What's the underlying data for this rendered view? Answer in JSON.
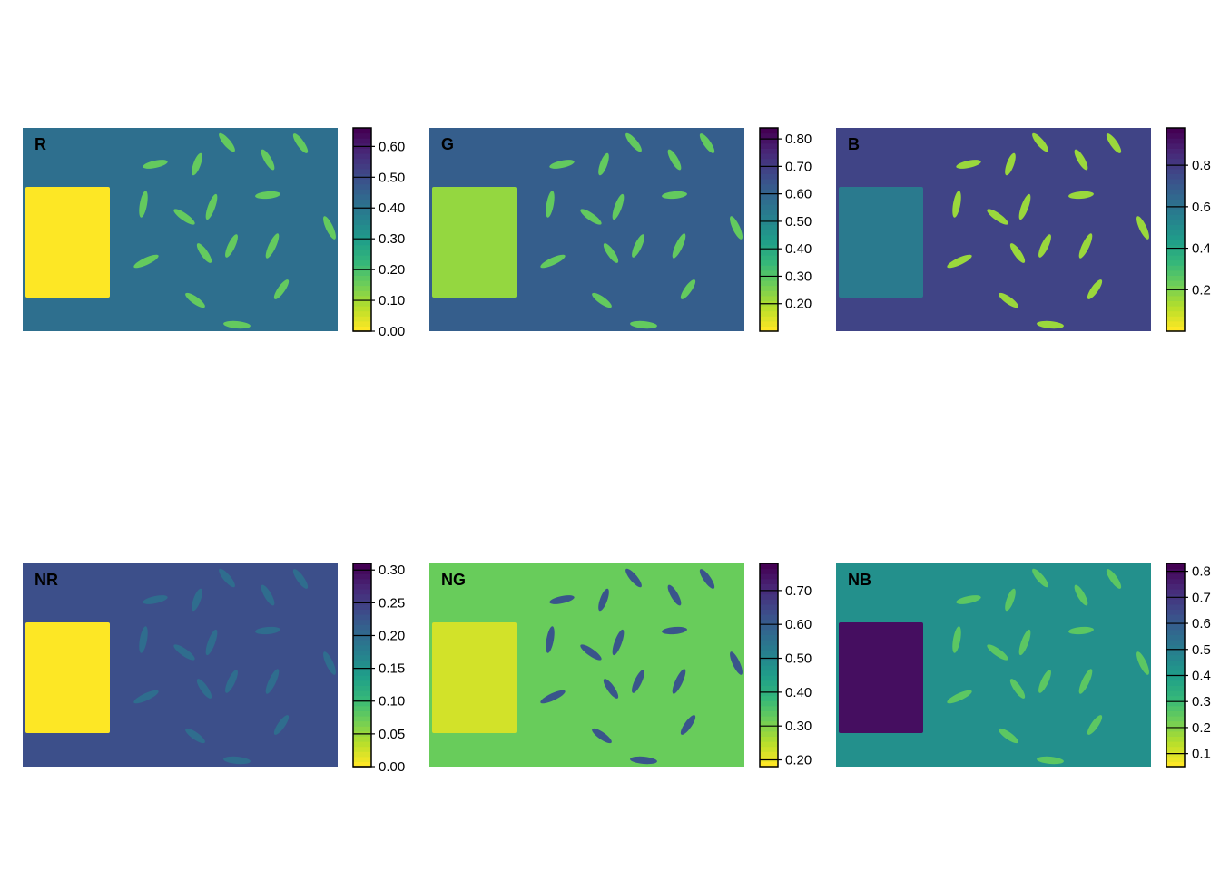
{
  "colors": {
    "viridis": [
      "#fde725",
      "#b5de2b",
      "#6ece58",
      "#35b779",
      "#1f9e89",
      "#26828e",
      "#31688e",
      "#3e4989",
      "#482878",
      "#440154"
    ],
    "background": "#ffffff"
  },
  "chart_data": [
    {
      "type": "heatmap",
      "label": "R",
      "legend": {
        "ticks": [
          0.0,
          0.1,
          0.2,
          0.3,
          0.4,
          0.5,
          0.6
        ],
        "tick_labels": [
          "0.00",
          "0.10",
          "0.20",
          "0.30",
          "0.40",
          "0.50",
          "0.60"
        ],
        "range": [
          0.0,
          0.66
        ]
      },
      "values": {
        "background": 0.42,
        "panel": 0.0,
        "seeds": 0.16
      }
    },
    {
      "type": "heatmap",
      "label": "G",
      "legend": {
        "ticks": [
          0.2,
          0.3,
          0.4,
          0.5,
          0.6,
          0.7,
          0.8
        ],
        "tick_labels": [
          "0.20",
          "0.30",
          "0.40",
          "0.50",
          "0.60",
          "0.70",
          "0.80"
        ],
        "range": [
          0.1,
          0.84
        ]
      },
      "values": {
        "background": 0.62,
        "panel": 0.22,
        "seeds": 0.28
      }
    },
    {
      "type": "heatmap",
      "label": "B",
      "legend": {
        "ticks": [
          0.2,
          0.4,
          0.6,
          0.8
        ],
        "tick_labels": [
          "0.2",
          "0.4",
          "0.6",
          "0.8"
        ],
        "range": [
          0.0,
          0.98
        ]
      },
      "values": {
        "background": 0.78,
        "panel": 0.58,
        "seeds": 0.15
      }
    },
    {
      "type": "heatmap",
      "label": "NR",
      "legend": {
        "ticks": [
          0.0,
          0.05,
          0.1,
          0.15,
          0.2,
          0.25,
          0.3
        ],
        "tick_labels": [
          "0.00",
          "0.05",
          "0.10",
          "0.15",
          "0.20",
          "0.25",
          "0.30"
        ],
        "range": [
          0.0,
          0.31
        ]
      },
      "values": {
        "background": 0.235,
        "panel": 0.0,
        "seeds": 0.2
      }
    },
    {
      "type": "heatmap",
      "label": "NG",
      "legend": {
        "ticks": [
          0.2,
          0.3,
          0.4,
          0.5,
          0.6,
          0.7
        ],
        "tick_labels": [
          "0.20",
          "0.30",
          "0.40",
          "0.50",
          "0.60",
          "0.70"
        ],
        "range": [
          0.18,
          0.78
        ]
      },
      "values": {
        "background": 0.32,
        "panel": 0.22,
        "seeds": 0.62
      }
    },
    {
      "type": "heatmap",
      "label": "NB",
      "legend": {
        "ticks": [
          0.1,
          0.2,
          0.3,
          0.4,
          0.5,
          0.6,
          0.7,
          0.8
        ],
        "tick_labels": [
          "0.1",
          "0.2",
          "0.3",
          "0.4",
          "0.5",
          "0.6",
          "0.7",
          "0.8"
        ],
        "range": [
          0.05,
          0.83
        ]
      },
      "values": {
        "background": 0.44,
        "panel": 0.8,
        "seeds": 0.25
      }
    }
  ]
}
